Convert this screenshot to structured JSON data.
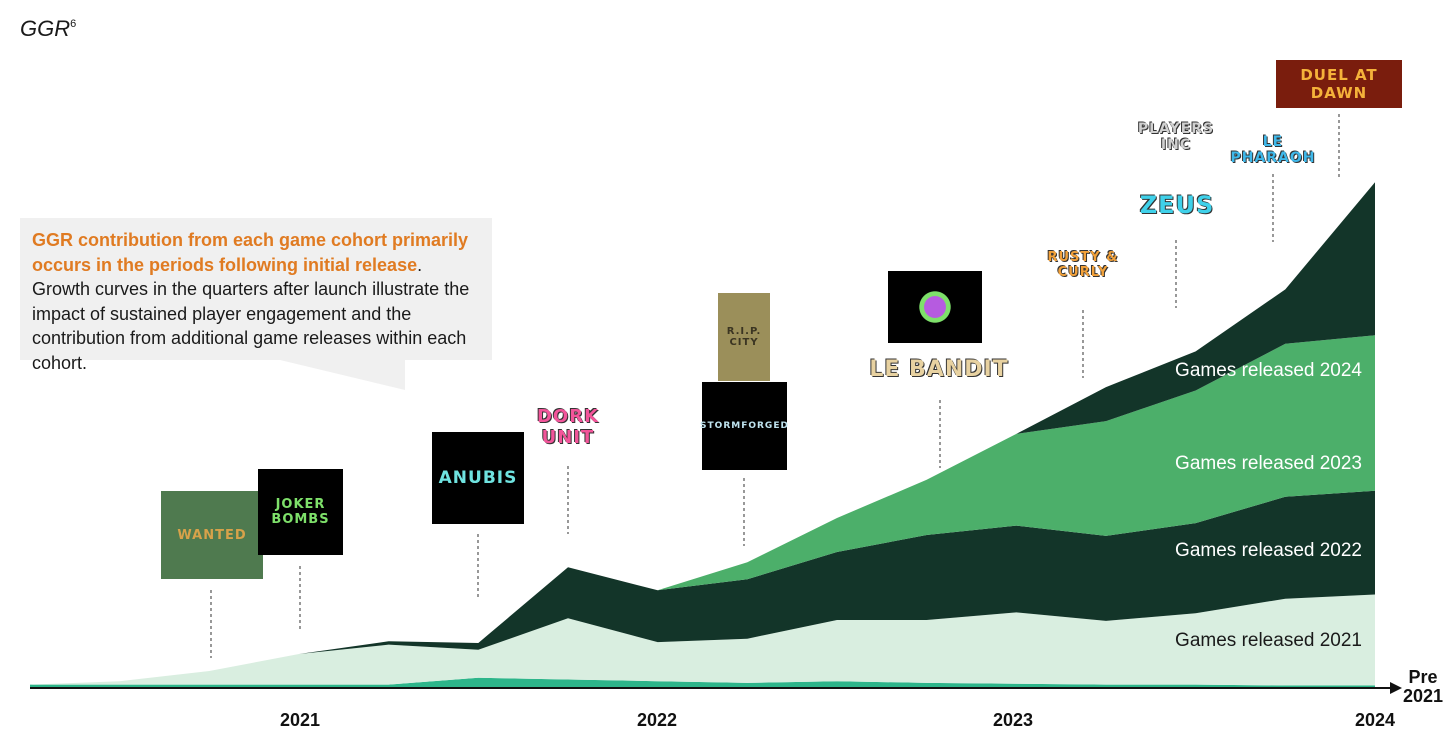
{
  "title": "GGR",
  "title_sup": "6",
  "callout": {
    "highlight": "GGR contribution from each game cohort primarily occurs in the periods following initial release",
    "rest": ". Growth curves in the quarters after launch illustrate the impact of sustained player engagement and the contribution from additional game releases within each cohort."
  },
  "x_axis_end_label": [
    "Pre",
    "2021"
  ],
  "logos": [
    {
      "id": "wanted",
      "text": "WANTED",
      "color": "#d7a24a",
      "bg": "#4f7a4f"
    },
    {
      "id": "joker-bombs",
      "text": "JOKER BOMBS",
      "color": "#7ee06a",
      "bg": "#000000"
    },
    {
      "id": "hand-of-anubis",
      "text": "ANUBIS",
      "color": "#6fe3e0",
      "bg": "#000000"
    },
    {
      "id": "dork-unit",
      "text": "DORK UNIT",
      "color": "#f2559a",
      "bg": "transparent"
    },
    {
      "id": "rip-city",
      "text": "R.I.P. CITY",
      "color": "#3b3522",
      "bg": "#9b8f5a"
    },
    {
      "id": "stormforged",
      "text": "STORMFORGED",
      "color": "#bfe3ef",
      "bg": "#000000"
    },
    {
      "id": "le-bandit-art",
      "text": "",
      "color": "#b65be0",
      "bg": "#000000"
    },
    {
      "id": "le-bandit",
      "text": "LE BANDIT",
      "color": "#e8d2a1",
      "bg": "transparent"
    },
    {
      "id": "rusty-curly",
      "text": "RUSTY & CURLY",
      "color": "#f2a13a",
      "bg": "transparent"
    },
    {
      "id": "players-inc",
      "text": "PLAYERS INC",
      "color": "#d0d0d0",
      "bg": "transparent"
    },
    {
      "id": "zeus",
      "text": "ZEUS",
      "color": "#3fd1ea",
      "bg": "transparent"
    },
    {
      "id": "le-pharaoh",
      "text": "LE PHARAOH",
      "color": "#3fb8ea",
      "bg": "transparent"
    },
    {
      "id": "duel-at-dawn",
      "text": "DUEL AT DAWN",
      "color": "#f5b23a",
      "bg": "#7a1d0d"
    }
  ],
  "chart_data": {
    "type": "area",
    "stacked": true,
    "title": "GGR",
    "xlabel": "",
    "ylabel": "",
    "x": [
      "Q1 2021",
      "Q2 2021",
      "Q3 2021",
      "Q4 2021",
      "Q1 2022",
      "Q2 2022",
      "Q3 2022",
      "Q4 2022",
      "Q1 2023",
      "Q2 2023",
      "Q3 2023",
      "Q4 2023",
      "Q1 2024",
      "Q2 2024",
      "Q3 2024",
      "Q4 2024"
    ],
    "x_tick_labels": [
      {
        "label": "2021",
        "x": "Q4 2021"
      },
      {
        "label": "2022",
        "x": "Q4 2022"
      },
      {
        "label": "2023",
        "x": "Q4 2023"
      },
      {
        "label": "2024",
        "x": "Q4 2024"
      }
    ],
    "y_axis_visible": false,
    "series": [
      {
        "name": "Pre 2021",
        "color": "#2db58a",
        "values": [
          4,
          4,
          4,
          4,
          4,
          12,
          10,
          8,
          6,
          8,
          6,
          5,
          4,
          4,
          3,
          3
        ]
      },
      {
        "name": "Games released 2021",
        "color": "#d9eee0",
        "values": [
          0,
          4,
          16,
          36,
          47,
          33,
          72,
          46,
          52,
          72,
          74,
          84,
          75,
          84,
          102,
          107
        ]
      },
      {
        "name": "Games released 2022",
        "color": "#133529",
        "values": [
          0,
          0,
          0,
          0,
          4,
          8,
          60,
          61,
          70,
          80,
          100,
          102,
          100,
          106,
          120,
          122
        ]
      },
      {
        "name": "Games released 2023",
        "color": "#4caf6a",
        "values": [
          0,
          0,
          0,
          0,
          0,
          0,
          0,
          0,
          20,
          40,
          65,
          108,
          135,
          156,
          180,
          183
        ]
      },
      {
        "name": "Games released 2024",
        "color": "#133529",
        "values": [
          0,
          0,
          0,
          0,
          0,
          0,
          0,
          0,
          0,
          0,
          0,
          0,
          40,
          46,
          64,
          180
        ]
      }
    ],
    "series_labels": [
      "Games released 2024",
      "Games released 2023",
      "Games released 2022",
      "Games released 2021"
    ]
  }
}
